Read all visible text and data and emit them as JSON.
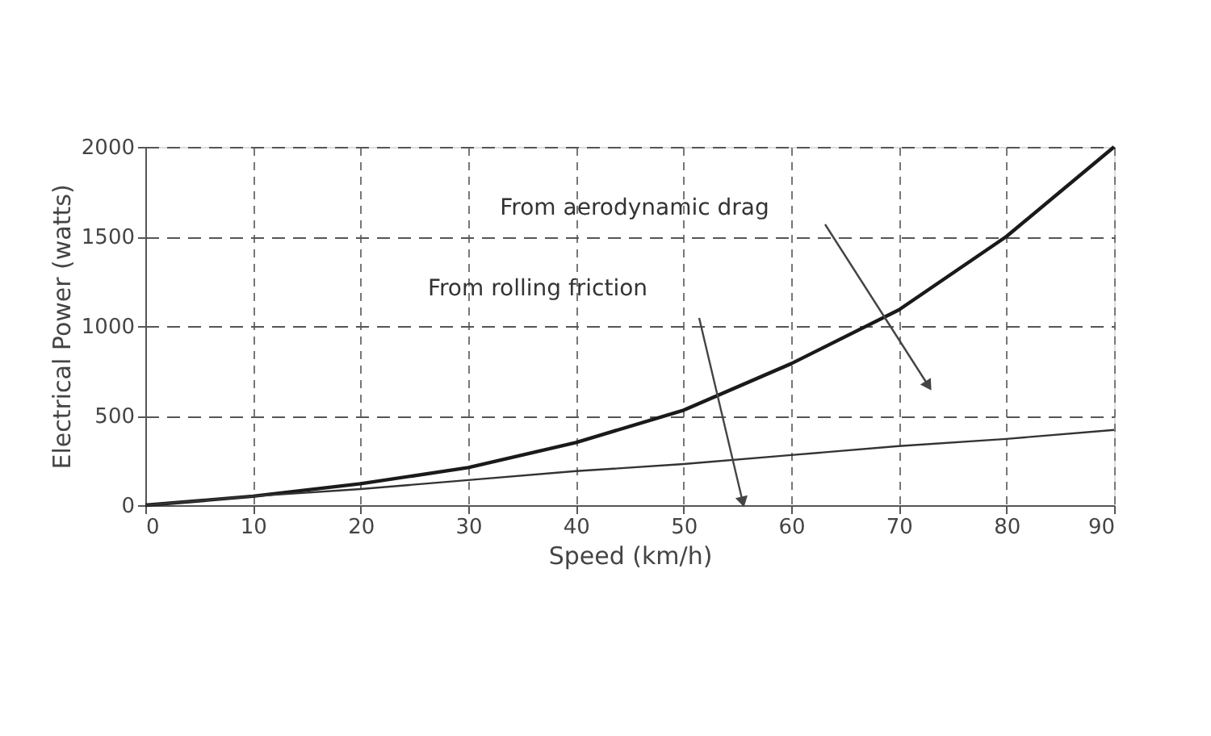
{
  "chart_data": {
    "type": "line",
    "xlabel": "Speed (km/h)",
    "ylabel": "Electrical Power (watts)",
    "x": [
      0,
      10,
      20,
      30,
      40,
      50,
      60,
      70,
      80,
      90
    ],
    "series": [
      {
        "color": "#1a1a1a",
        "values": [
          0,
          50,
          120,
          210,
          350,
          530,
          790,
          1090,
          1500,
          2000
        ]
      },
      {
        "color": "#333333",
        "values": [
          0,
          50,
          90,
          140,
          190,
          230,
          280,
          330,
          370,
          420
        ]
      }
    ],
    "xlim": [
      0,
      90
    ],
    "xticks": [
      0,
      10,
      20,
      30,
      40,
      50,
      60,
      70,
      80,
      90
    ],
    "ylim": [
      0,
      2000
    ],
    "yticks": [
      0,
      500,
      1000,
      1500,
      2000
    ],
    "grid": true,
    "line_style": "solid",
    "marker": "none",
    "annotations": [
      "From aerodynamic drag",
      "From rolling friction"
    ]
  }
}
